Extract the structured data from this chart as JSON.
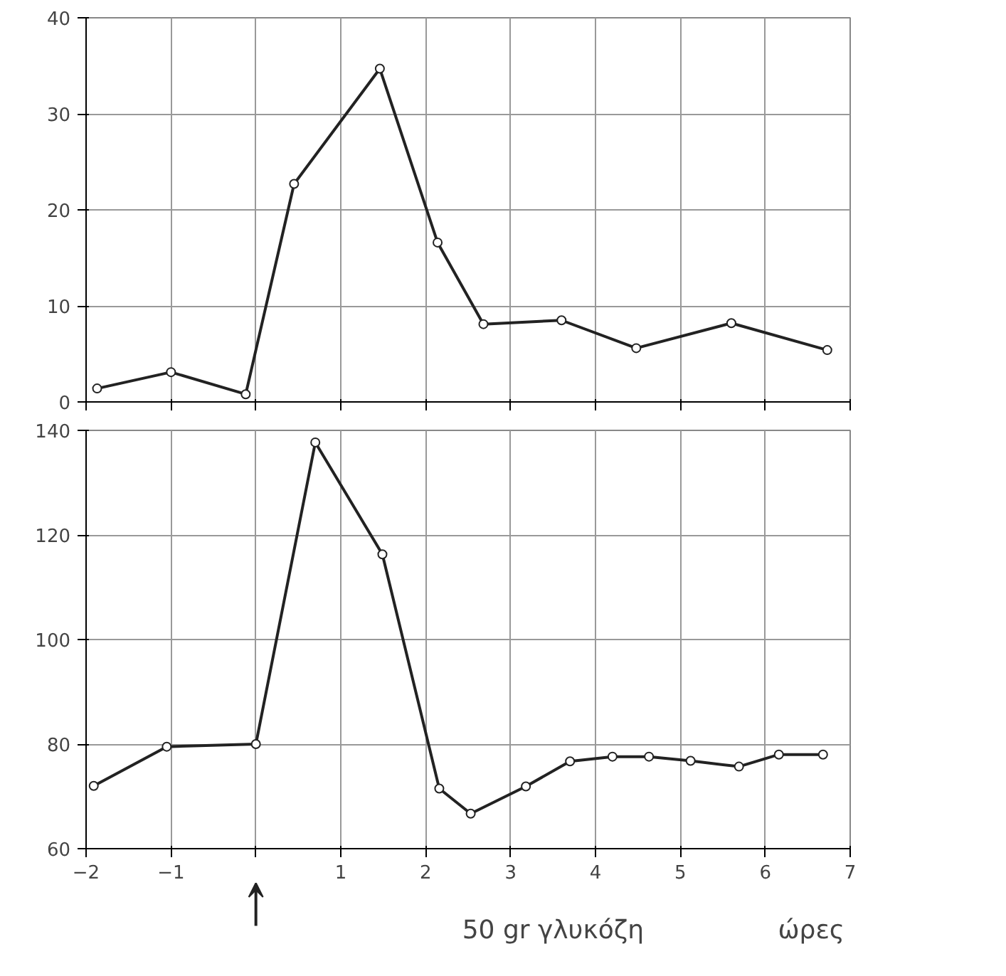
{
  "chart_data": [
    {
      "type": "line",
      "x": [
        -1.87,
        -1.0,
        -0.12,
        0.45,
        1.46,
        2.14,
        2.68,
        3.6,
        4.48,
        5.6,
        6.73
      ],
      "values": [
        1.4,
        3.1,
        0.8,
        22.7,
        34.7,
        16.6,
        8.1,
        8.5,
        5.6,
        8.2,
        5.4
      ],
      "color": "#222222",
      "marker": "circle",
      "grid": true,
      "xlim": [
        -2,
        7
      ],
      "xticks": [
        -2,
        -1,
        0,
        1,
        2,
        3,
        4,
        5,
        6,
        7
      ],
      "ylim": [
        0,
        40
      ],
      "yticks": [
        0,
        10,
        20,
        30,
        40
      ],
      "tick_labels": "y"
    },
    {
      "type": "line",
      "x": [
        -1.91,
        -1.05,
        0.0,
        0.7,
        1.49,
        2.16,
        2.53,
        3.18,
        3.7,
        4.2,
        4.63,
        5.12,
        5.69,
        6.16,
        6.68
      ],
      "values": [
        72,
        79.5,
        80,
        137.7,
        116.3,
        71.5,
        66.7,
        71.9,
        76.7,
        77.6,
        77.6,
        76.8,
        75.7,
        78,
        78
      ],
      "color": "#222222",
      "marker": "circle",
      "grid": true,
      "xlim": [
        -2,
        7
      ],
      "xticks": [
        -2,
        -1,
        {
          "value": 0,
          "label": null
        },
        1,
        2,
        3,
        4,
        5,
        6,
        7
      ],
      "ylim": [
        60,
        140
      ],
      "yticks": [
        60,
        80,
        100,
        120,
        140
      ],
      "xlabel": "ώρες",
      "annotations": [
        "50 gr γλυκόζη"
      ]
    }
  ]
}
